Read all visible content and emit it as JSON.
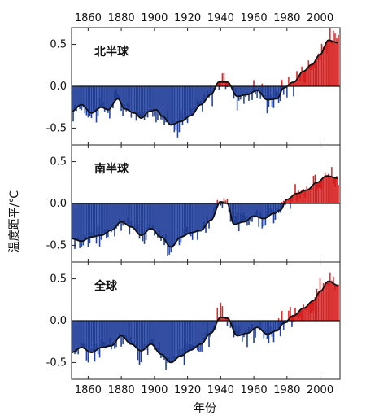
{
  "colors": {
    "warm": "#d62020",
    "cool": "#233f94",
    "smooth": "#111111",
    "frame": "#222222"
  },
  "chart_data": {
    "type": "bar",
    "xlabel": "年份",
    "ylabel": "温度距平/℃",
    "xlim": [
      1850,
      2012
    ],
    "ylim": [
      -0.7,
      0.7
    ],
    "x_ticks": [
      1860,
      1880,
      1900,
      1920,
      1940,
      1960,
      1980,
      2000
    ],
    "y_ticks": [
      -0.5,
      0.0,
      0.5
    ],
    "grid": false,
    "panels": [
      {
        "label": "北半球",
        "anchors": [
          [
            1850,
            -0.3
          ],
          [
            1856,
            -0.22
          ],
          [
            1862,
            -0.32
          ],
          [
            1868,
            -0.25
          ],
          [
            1872,
            -0.28
          ],
          [
            1878,
            -0.15
          ],
          [
            1882,
            -0.27
          ],
          [
            1888,
            -0.32
          ],
          [
            1892,
            -0.38
          ],
          [
            1897,
            -0.3
          ],
          [
            1901,
            -0.28
          ],
          [
            1905,
            -0.36
          ],
          [
            1910,
            -0.46
          ],
          [
            1916,
            -0.42
          ],
          [
            1922,
            -0.35
          ],
          [
            1928,
            -0.22
          ],
          [
            1934,
            -0.1
          ],
          [
            1939,
            0.05
          ],
          [
            1944,
            0.05
          ],
          [
            1950,
            -0.12
          ],
          [
            1956,
            -0.1
          ],
          [
            1962,
            -0.05
          ],
          [
            1968,
            -0.16
          ],
          [
            1974,
            -0.15
          ],
          [
            1978,
            -0.02
          ],
          [
            1984,
            0.05
          ],
          [
            1990,
            0.18
          ],
          [
            1995,
            0.26
          ],
          [
            2000,
            0.38
          ],
          [
            2005,
            0.55
          ],
          [
            2011,
            0.52
          ]
        ]
      },
      {
        "label": "南半球",
        "anchors": [
          [
            1850,
            -0.42
          ],
          [
            1856,
            -0.45
          ],
          [
            1862,
            -0.4
          ],
          [
            1868,
            -0.38
          ],
          [
            1874,
            -0.32
          ],
          [
            1880,
            -0.22
          ],
          [
            1886,
            -0.28
          ],
          [
            1892,
            -0.38
          ],
          [
            1898,
            -0.3
          ],
          [
            1904,
            -0.4
          ],
          [
            1910,
            -0.52
          ],
          [
            1916,
            -0.4
          ],
          [
            1922,
            -0.35
          ],
          [
            1928,
            -0.32
          ],
          [
            1934,
            -0.2
          ],
          [
            1940,
            0.02
          ],
          [
            1944,
            0.0
          ],
          [
            1948,
            -0.25
          ],
          [
            1954,
            -0.22
          ],
          [
            1960,
            -0.15
          ],
          [
            1966,
            -0.18
          ],
          [
            1972,
            -0.12
          ],
          [
            1976,
            -0.08
          ],
          [
            1980,
            0.05
          ],
          [
            1986,
            0.12
          ],
          [
            1992,
            0.16
          ],
          [
            1998,
            0.25
          ],
          [
            2004,
            0.33
          ],
          [
            2011,
            0.3
          ]
        ]
      },
      {
        "label": "全球",
        "anchors": [
          [
            1850,
            -0.38
          ],
          [
            1856,
            -0.32
          ],
          [
            1862,
            -0.38
          ],
          [
            1868,
            -0.32
          ],
          [
            1874,
            -0.3
          ],
          [
            1880,
            -0.18
          ],
          [
            1886,
            -0.28
          ],
          [
            1892,
            -0.36
          ],
          [
            1898,
            -0.28
          ],
          [
            1904,
            -0.4
          ],
          [
            1910,
            -0.5
          ],
          [
            1916,
            -0.42
          ],
          [
            1922,
            -0.35
          ],
          [
            1928,
            -0.28
          ],
          [
            1934,
            -0.15
          ],
          [
            1940,
            0.04
          ],
          [
            1944,
            0.03
          ],
          [
            1950,
            -0.18
          ],
          [
            1956,
            -0.15
          ],
          [
            1962,
            -0.08
          ],
          [
            1968,
            -0.16
          ],
          [
            1974,
            -0.12
          ],
          [
            1978,
            -0.03
          ],
          [
            1984,
            0.06
          ],
          [
            1990,
            0.15
          ],
          [
            1996,
            0.24
          ],
          [
            2000,
            0.35
          ],
          [
            2005,
            0.47
          ],
          [
            2011,
            0.42
          ]
        ]
      }
    ]
  }
}
